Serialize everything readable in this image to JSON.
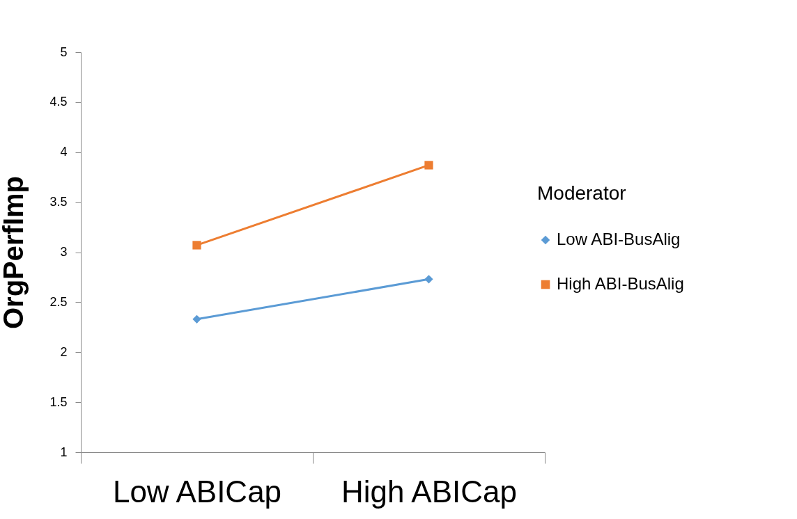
{
  "chart_data": {
    "type": "line",
    "ylabel": "OrgPerfImp",
    "legend_title": "Moderator",
    "legend": "right",
    "grid": false,
    "categories": [
      "Low ABICap",
      "High ABICap"
    ],
    "ylim": [
      1,
      5
    ],
    "yticks": [
      1,
      1.5,
      2,
      2.5,
      3,
      3.5,
      4,
      4.5,
      5
    ],
    "series": [
      {
        "name": "Low ABI-BusAlig",
        "color": "#5b9bd5",
        "marker": "diamond",
        "values": [
          2.33,
          2.73
        ]
      },
      {
        "name": "High ABI-BusAlig",
        "color": "#ed7d31",
        "marker": "square",
        "values": [
          3.07,
          3.87
        ]
      }
    ]
  }
}
